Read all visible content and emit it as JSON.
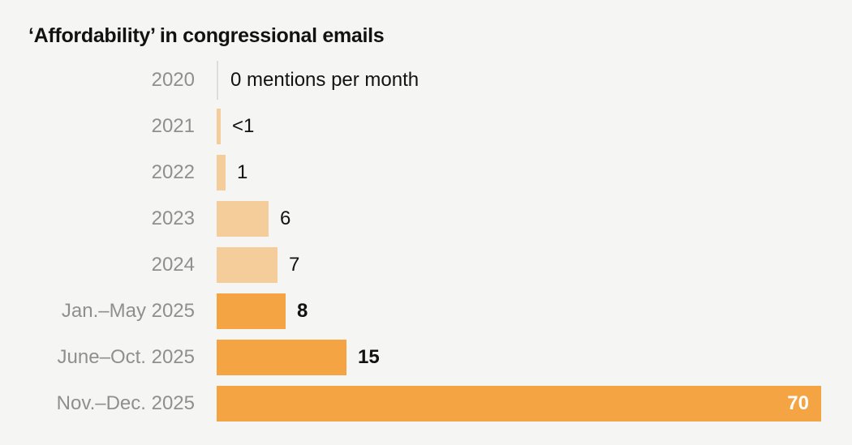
{
  "chart_data": {
    "type": "bar",
    "orientation": "horizontal",
    "title": "‘Affordability’ in congressional emails",
    "unit_annotation": "0 mentions per month",
    "categories": [
      "2020",
      "2021",
      "2022",
      "2023",
      "2024",
      "Jan.–May 2025",
      "June–Oct. 2025",
      "Nov.–Dec. 2025"
    ],
    "values": [
      0,
      0.5,
      1,
      6,
      7,
      8,
      15,
      70
    ],
    "value_labels": [
      "0 mentions per month",
      "<1",
      "1",
      "6",
      "7",
      "8",
      "15",
      "70"
    ],
    "emphasis": [
      false,
      false,
      false,
      false,
      false,
      true,
      true,
      true
    ],
    "value_inside": [
      false,
      false,
      false,
      false,
      false,
      false,
      false,
      true
    ],
    "xlim": [
      0,
      70
    ],
    "grid": false,
    "legend": "none",
    "colors": {
      "bar_light": "#f4cd9b",
      "bar_dark": "#f5a443",
      "label_gray": "#8f8f8f",
      "text_black": "#121212",
      "inside_value_white": "#ffffff",
      "background": "#f5f5f4",
      "zero_tick": "#dddddb"
    }
  }
}
